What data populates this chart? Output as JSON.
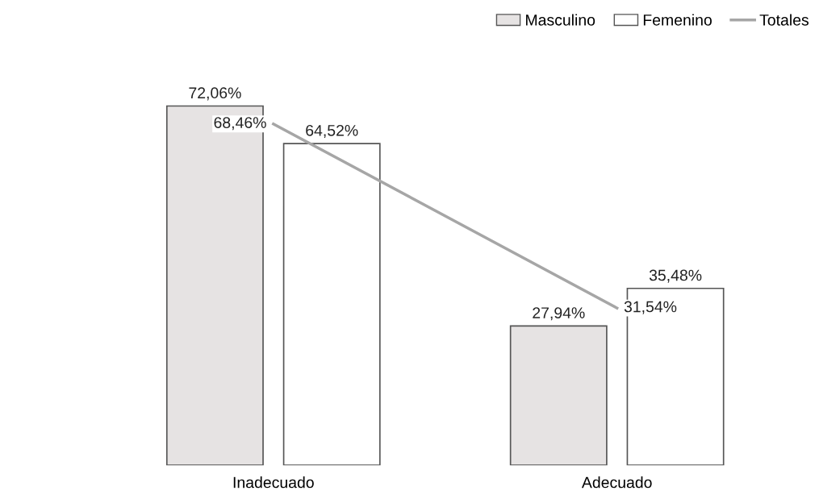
{
  "chart_data": {
    "type": "bar",
    "categories": [
      "Inadecuado",
      "Adecuado"
    ],
    "series": [
      {
        "name": "Masculino",
        "color": "#e6e3e3",
        "values": [
          72.06,
          27.94
        ],
        "value_labels": [
          "72,06%",
          "27,94%"
        ]
      },
      {
        "name": "Femenino",
        "color": "#ffffff",
        "values": [
          64.52,
          35.48
        ],
        "value_labels": [
          "64,52%",
          "35,48%"
        ]
      },
      {
        "name": "Totales",
        "type": "line",
        "color": "#a6a6a6",
        "values": [
          68.46,
          31.54
        ],
        "value_labels": [
          "68,46%",
          "31,54%"
        ]
      }
    ],
    "legend": "top right",
    "grid": false
  }
}
